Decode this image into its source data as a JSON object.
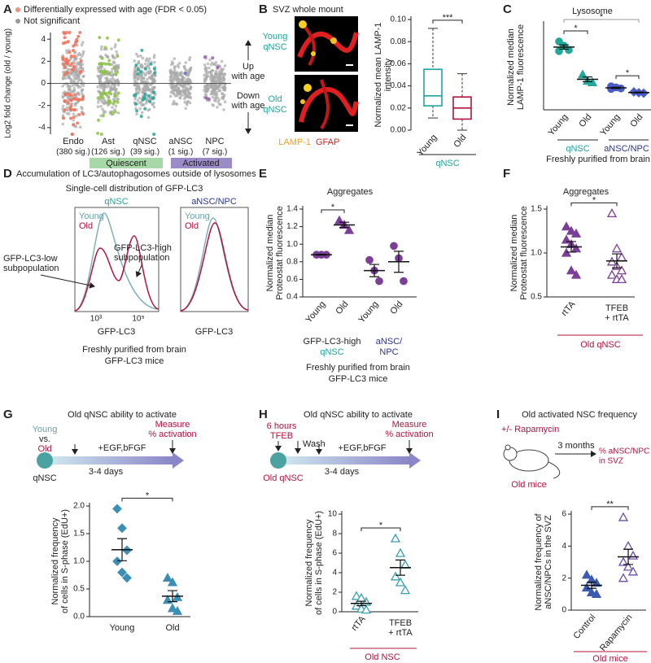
{
  "panels": {
    "a": {
      "letter": "A",
      "legend": [
        "Differentially expressed with age (FDR < 0.05)",
        "Not significant"
      ],
      "chart": {
        "type": "strip-cloud",
        "ylabel": "Log2 fold change (old / young)",
        "ylim": [
          -4.6,
          4.6
        ],
        "yticks": [
          4,
          2,
          0,
          -2,
          -4
        ],
        "categories": [
          "Endo",
          "Ast",
          "qNSC",
          "aNSC",
          "NPC"
        ],
        "annotations": [
          "(380 sig.)",
          "(126 sig.)",
          "(39 sig.)",
          "(1 sig.)",
          "(7 sig.)"
        ],
        "colors": [
          "#f07158",
          "#8cc63f",
          "#22a89a",
          "#6b6fd0",
          "#9b59b6"
        ]
      },
      "up": [
        "Up",
        "with age"
      ],
      "down": [
        "Down",
        "with age"
      ],
      "groups": [
        "Quiescent",
        "Activated"
      ]
    },
    "b": {
      "letter": "B",
      "title": "SVZ whole mount",
      "young": [
        "Young",
        "qNSC"
      ],
      "old": [
        "Old",
        "qNSC"
      ],
      "stain": [
        "LAMP-1",
        "GFAP"
      ],
      "chart": {
        "type": "box",
        "ylabel": [
          "Normalized mean LAMP-1",
          "intensity"
        ],
        "ylim": [
          0,
          0.1
        ],
        "yticks": [
          {
            "value": 0,
            "label": "0.00"
          },
          {
            "value": 0.02,
            "label": "0.02"
          },
          {
            "value": 0.04,
            "label": "0.04"
          },
          {
            "value": 0.06,
            "label": "0.06"
          },
          {
            "value": 0.08,
            "label": "0.08"
          },
          {
            "value": 0.1,
            "label": "0.10"
          }
        ],
        "groups": [
          {
            "label": [
              "Young"
            ],
            "label_color": "#5fa3a8",
            "color": "#1fa5a0",
            "min": 0.011,
            "q1": 0.022,
            "median": 0.031,
            "q3": 0.055,
            "max": 0.092
          },
          {
            "label": [
              "Old"
            ],
            "label_color": "#b5123e",
            "color": "#b5123e",
            "min": 0.0,
            "q1": 0.01,
            "median": 0.02,
            "q3": 0.03,
            "max": 0.051
          }
        ],
        "sig": [
          "***"
        ]
      },
      "group": "qNSC"
    },
    "c": {
      "letter": "C",
      "title": "Lysosome",
      "chart": {
        "type": "strip",
        "ylabel": [
          "Normalized median",
          "LAMP-1 fluorescence"
        ],
        "ylim": [
          0,
          400
        ],
        "groups": [
          {
            "label": [
              "Young"
            ],
            "label_color": "#5fa3a8",
            "color": "#22a89a",
            "marker": "circle",
            "filled": true,
            "values": [
              320,
              300,
              280,
              275
            ],
            "mean": 294,
            "sem": 10
          },
          {
            "label": [
              "Old"
            ],
            "label_color": "#b5123e",
            "color": "#22a89a",
            "marker": "triangle",
            "filled": true,
            "values": [
              165,
              135,
              128
            ],
            "mean": 143,
            "sem": 11
          },
          {
            "label": [
              "Young"
            ],
            "label_color": "#5fa3a8",
            "color": "#4a5cc8",
            "marker": "circle",
            "filled": true,
            "values": [
              110,
              105,
              100,
              98
            ],
            "mean": 103,
            "sem": 3
          },
          {
            "label": [
              "Old"
            ],
            "label_color": "#b5123e",
            "color": "#4a5cc8",
            "marker": "diamond",
            "filled": true,
            "values": [
              84,
              80,
              78
            ],
            "mean": 81,
            "sem": 2
          }
        ],
        "sig": [
          "*",
          "*",
          "*"
        ]
      },
      "groups": [
        "qNSC",
        "aNSC/NPC"
      ],
      "note": "Freshly purified from brain"
    },
    "d": {
      "letter": "D",
      "title": "Accumulation of LC3/autophagosomes outside of lysosomes",
      "subtitle": "Single-cell distribution of GFP-LC3",
      "plots": [
        {
          "title": "qNSC",
          "legend": [
            "Young",
            "Old"
          ],
          "xlabel": "GFP-LC3",
          "xticks": [
            "10³",
            "10⁵"
          ]
        },
        {
          "title": "aNSC/NPC",
          "legend": [
            "Young",
            "Old"
          ],
          "xlabel": "GFP-LC3"
        }
      ],
      "low": [
        "GFP-LC3-low",
        "subpopulation"
      ],
      "high": [
        "GFP-LC3-high",
        "subpopulation"
      ],
      "note": [
        "Freshly purified from brain",
        "GFP-LC3 mice"
      ]
    },
    "e": {
      "letter": "E",
      "title": "Aggregates",
      "chart": {
        "type": "strip",
        "ylabel": [
          "Normalized median",
          "Proteostat fluorescence"
        ],
        "ylim": [
          0.4,
          1.4
        ],
        "yticks": [
          0.4,
          0.6,
          0.8,
          {
            "value": 1.0,
            "label": "1.0"
          },
          1.2,
          1.4
        ],
        "groups": [
          {
            "label": [
              "Young"
            ],
            "label_color": "#5fa3a8",
            "color": "#7b3f98",
            "marker": "circle",
            "filled": true,
            "values": [
              0.88,
              0.88,
              0.88
            ],
            "mean": 0.88,
            "sem": 0.005
          },
          {
            "label": [
              "Old"
            ],
            "label_color": "#b5123e",
            "color": "#7b3f98",
            "marker": "triangle",
            "filled": true,
            "values": [
              1.27,
              1.22,
              1.16
            ],
            "mean": 1.22,
            "sem": 0.03
          },
          {
            "label": [
              "Young"
            ],
            "label_color": "#5fa3a8",
            "color": "#7b3f98",
            "marker": "circle",
            "filled": true,
            "values": [
              0.82,
              0.7,
              0.58
            ],
            "mean": 0.7,
            "sem": 0.07
          },
          {
            "label": [
              "Old"
            ],
            "label_color": "#b5123e",
            "color": "#7b3f98",
            "marker": "circle",
            "filled": true,
            "values": [
              0.98,
              0.84,
              0.58
            ],
            "mean": 0.8,
            "sem": 0.12
          }
        ],
        "sig": [
          "*"
        ]
      },
      "groups": [
        [
          "GFP-LC3-high",
          "qNSC"
        ],
        [
          "aNSC/",
          "NPC"
        ]
      ],
      "note": [
        "Freshly purified from brain",
        "GFP-LC3 mice"
      ]
    },
    "f": {
      "letter": "F",
      "title": "Aggregates",
      "chart": {
        "type": "strip",
        "ylabel": [
          "Normalized median",
          "Proteostat fluorescence"
        ],
        "ylim": [
          0.5,
          1.5
        ],
        "yticks": [
          0.5,
          {
            "value": 1.0,
            "label": "1.0"
          },
          1.5
        ],
        "groups": [
          {
            "label": [
              "rtTA"
            ],
            "label_color": "#222222",
            "color": "#7b3f98",
            "marker": "triangle",
            "filled": true,
            "values": [
              1.3,
              1.25,
              1.22,
              1.15,
              1.1,
              1.05,
              1.0,
              0.8,
              0.75
            ],
            "mean": 1.07,
            "sem": 0.06
          },
          {
            "label": [
              "TFEB",
              "+ rtTA"
            ],
            "label_color": "#222222",
            "color": "#7b3f98",
            "marker": "triangle",
            "filled": false,
            "values": [
              1.45,
              1.05,
              0.95,
              0.9,
              0.85,
              0.8,
              0.75,
              0.7,
              0.7
            ],
            "mean": 0.91,
            "sem": 0.08
          }
        ],
        "sig": [
          "*"
        ]
      },
      "group": "Old qNSC"
    },
    "g": {
      "letter": "G",
      "title": "Old qNSC ability to activate",
      "diagram": {
        "young": "Young",
        "vs": "vs.",
        "old": "Old",
        "cell": "qNSC",
        "treatment": "+EGF,bFGF",
        "duration": "3-4 days",
        "measure": [
          "Measure",
          "% activation"
        ]
      },
      "chart": {
        "type": "strip",
        "ylabel": [
          "Normalized frequency",
          "of cells in S-phase (EdU+)"
        ],
        "ylim": [
          0,
          2
        ],
        "yticks": [
          {
            "value": 0,
            "label": "0.0"
          },
          0.5,
          {
            "value": 1,
            "label": "1.0"
          },
          1.5,
          {
            "value": 2,
            "label": "2.0"
          }
        ],
        "groups": [
          {
            "label": [
              "Young"
            ],
            "label_color": "#5fa3a8",
            "color": "#3b8fb5",
            "marker": "diamond",
            "filled": true,
            "values": [
              1.95,
              1.6,
              1.2,
              1.0,
              0.8,
              0.7
            ],
            "mean": 1.21,
            "sem": 0.2
          },
          {
            "label": [
              "Old"
            ],
            "label_color": "#b5123e",
            "color": "#3b8fb5",
            "marker": "triangle",
            "filled": true,
            "values": [
              0.7,
              0.62,
              0.35,
              0.3,
              0.15,
              0.1
            ],
            "mean": 0.37,
            "sem": 0.1
          }
        ],
        "sig": [
          "*"
        ]
      }
    },
    "h": {
      "letter": "H",
      "title": "Old qNSC ability to activate",
      "diagram": {
        "pulse": [
          "6 hours",
          "TFEB"
        ],
        "wash": "Wash",
        "cell": "Old qNSC",
        "treatment": "+EGF,bFGF",
        "duration": "3-4 days",
        "measure": [
          "Measure",
          "% activation"
        ]
      },
      "chart": {
        "type": "strip",
        "ylabel": [
          "Normalized frequency",
          "of cells in S-phase (EdU+)"
        ],
        "ylim": [
          0,
          10
        ],
        "yticks": [
          0,
          2,
          4,
          6,
          8,
          10
        ],
        "groups": [
          {
            "label": [
              "rtTA"
            ],
            "label_color": "#222222",
            "color": "#3ba0b0",
            "marker": "triangle",
            "filled": false,
            "values": [
              1.6,
              1.4,
              1.0,
              0.6,
              0.3,
              0.2
            ],
            "mean": 0.85,
            "sem": 0.23
          },
          {
            "label": [
              "TFEB",
              "+ rtTA"
            ],
            "label_color": "#222222",
            "color": "#3ba0b0",
            "marker": "triangle",
            "filled": false,
            "values": [
              7.5,
              6.0,
              4.8,
              3.6,
              3.0,
              2.2
            ],
            "mean": 4.52,
            "sem": 0.78
          }
        ],
        "sig": [
          "*"
        ]
      },
      "group": "Old NSC"
    },
    "i": {
      "letter": "I",
      "title": "Old activated NSC frequency",
      "diagram": {
        "treatment": "+/- Rapamycin",
        "duration": "3 months",
        "measure": [
          "% aNSC/NPC",
          "in SVZ"
        ],
        "subject": "Old mice"
      },
      "chart": {
        "type": "strip",
        "ylabel": [
          "Normalized frequency of",
          "aNSC/NPCs in the SVZ"
        ],
        "ylim": [
          0,
          6
        ],
        "yticks": [
          0,
          2,
          4,
          6
        ],
        "groups": [
          {
            "label": [
              "Control"
            ],
            "label_color": "#222222",
            "color": "#3a5bb0",
            "marker": "triangle",
            "filled": true,
            "values": [
              2.2,
              1.9,
              1.7,
              1.4,
              1.1,
              1.0
            ],
            "mean": 1.55,
            "sem": 0.19
          },
          {
            "label": [
              "Rapamycin"
            ],
            "label_color": "#222222",
            "color": "#6a4fb0",
            "marker": "triangle",
            "filled": false,
            "values": [
              5.8,
              4.0,
              3.4,
              3.0,
              2.7,
              2.4,
              2.0
            ],
            "mean": 3.33,
            "sem": 0.48
          }
        ],
        "sig": [
          "**"
        ]
      },
      "group": "Old mice"
    }
  }
}
